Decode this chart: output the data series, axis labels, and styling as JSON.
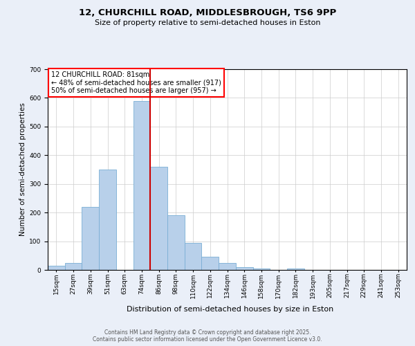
{
  "title_line1": "12, CHURCHILL ROAD, MIDDLESBROUGH, TS6 9PP",
  "title_line2": "Size of property relative to semi-detached houses in Eston",
  "xlabel": "Distribution of semi-detached houses by size in Eston",
  "ylabel": "Number of semi-detached properties",
  "footnote": "Contains HM Land Registry data © Crown copyright and database right 2025.\nContains public sector information licensed under the Open Government Licence v3.0.",
  "bar_labels": [
    "15sqm",
    "27sqm",
    "39sqm",
    "51sqm",
    "63sqm",
    "74sqm",
    "86sqm",
    "98sqm",
    "110sqm",
    "122sqm",
    "134sqm",
    "146sqm",
    "158sqm",
    "170sqm",
    "182sqm",
    "193sqm",
    "205sqm",
    "217sqm",
    "229sqm",
    "241sqm",
    "253sqm"
  ],
  "bar_values": [
    15,
    25,
    220,
    350,
    0,
    590,
    360,
    190,
    95,
    45,
    25,
    10,
    5,
    0,
    5,
    0,
    0,
    0,
    0,
    0,
    0
  ],
  "bar_color": "#b8d0ea",
  "bar_edge_color": "#7aaed4",
  "vline_color": "#cc0000",
  "annotation_title": "12 CHURCHILL ROAD: 81sqm",
  "annotation_line1": "← 48% of semi-detached houses are smaller (917)",
  "annotation_line2": "50% of semi-detached houses are larger (957) →",
  "ylim": [
    0,
    700
  ],
  "yticks": [
    0,
    100,
    200,
    300,
    400,
    500,
    600,
    700
  ],
  "bg_color": "#eaeff8",
  "plot_bg_color": "#ffffff",
  "grid_color": "#cccccc",
  "title_fontsize": 9.5,
  "subtitle_fontsize": 8,
  "ylabel_fontsize": 7.5,
  "xlabel_fontsize": 8,
  "tick_fontsize": 6.5,
  "annot_fontsize": 7,
  "footnote_fontsize": 5.5
}
